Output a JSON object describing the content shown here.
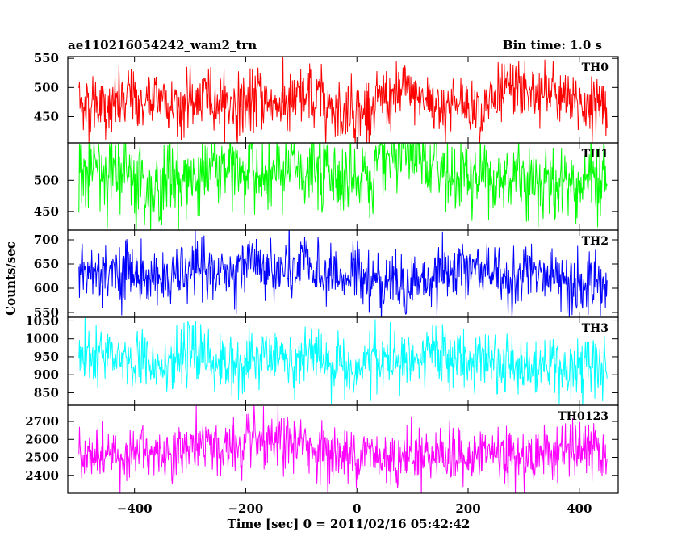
{
  "header": {
    "title": "ae110216054242_wam2_trn",
    "bin_time": "Bin time: 1.0 s"
  },
  "chart_data": {
    "type": "line",
    "title": "ae110216054242_wam2_trn",
    "xlabel": "Time [sec] 0 = 2011/02/16 05:42:42",
    "ylabel": "Counts/sec",
    "xlim": [
      -520,
      470
    ],
    "x_ticks": [
      -400,
      -200,
      0,
      200,
      400
    ],
    "x_range": [
      -500,
      450
    ],
    "x_step": 1,
    "grid": false,
    "legend": "none",
    "panels": [
      {
        "name": "TH0",
        "color": "#ff0000",
        "ylim": [
          405,
          553
        ],
        "y_ticks": [
          450,
          500,
          550
        ],
        "mean": 475,
        "spread": 26
      },
      {
        "name": "TH1",
        "color": "#00ff00",
        "ylim": [
          420,
          560
        ],
        "y_ticks": [
          450,
          500
        ],
        "mean": 510,
        "spread": 30
      },
      {
        "name": "TH2",
        "color": "#0000ff",
        "ylim": [
          540,
          720
        ],
        "y_ticks": [
          550,
          600,
          650,
          700
        ],
        "mean": 625,
        "spread": 30
      },
      {
        "name": "TH3",
        "color": "#00ffff",
        "ylim": [
          815,
          1060
        ],
        "y_ticks": [
          850,
          900,
          950,
          1000,
          1050
        ],
        "mean": 935,
        "spread": 40
      },
      {
        "name": "TH0123",
        "color": "#ff00ff",
        "ylim": [
          2300,
          2790
        ],
        "y_ticks": [
          2400,
          2500,
          2600,
          2700
        ],
        "mean": 2530,
        "spread": 75
      }
    ]
  }
}
